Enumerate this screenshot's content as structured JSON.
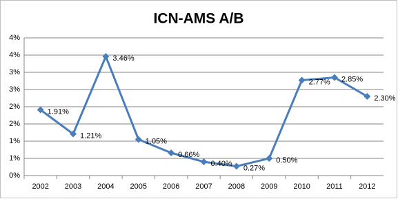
{
  "chart_data": {
    "type": "line",
    "title": "ICN-AMS A/B",
    "categories": [
      "2002",
      "2003",
      "2004",
      "2005",
      "2006",
      "2007",
      "2008",
      "2009",
      "2010",
      "2011",
      "2012"
    ],
    "series": [
      {
        "name": "ICN-AMS A/B",
        "color": "#4a7ebb",
        "values": [
          1.91,
          1.21,
          3.46,
          1.05,
          0.66,
          0.4,
          0.27,
          0.5,
          2.77,
          2.85,
          2.3
        ],
        "value_labels": [
          "1.91%",
          "1.21%",
          "3.46%",
          "1.05%",
          "0.66%",
          "0.40%",
          "0.27%",
          "0.50%",
          "2.77%",
          "2.85%",
          "2.30%"
        ]
      }
    ],
    "ylim": [
      0,
      4
    ],
    "yticks": [
      {
        "value": 0,
        "label": "0%"
      },
      {
        "value": 0.5,
        "label": "1%"
      },
      {
        "value": 1,
        "label": "1%"
      },
      {
        "value": 1.5,
        "label": "2%"
      },
      {
        "value": 2,
        "label": "2%"
      },
      {
        "value": 2.5,
        "label": "3%"
      },
      {
        "value": 3,
        "label": "3%"
      },
      {
        "value": 3.5,
        "label": "4%"
      },
      {
        "value": 4,
        "label": "4%"
      }
    ],
    "grid": true
  }
}
